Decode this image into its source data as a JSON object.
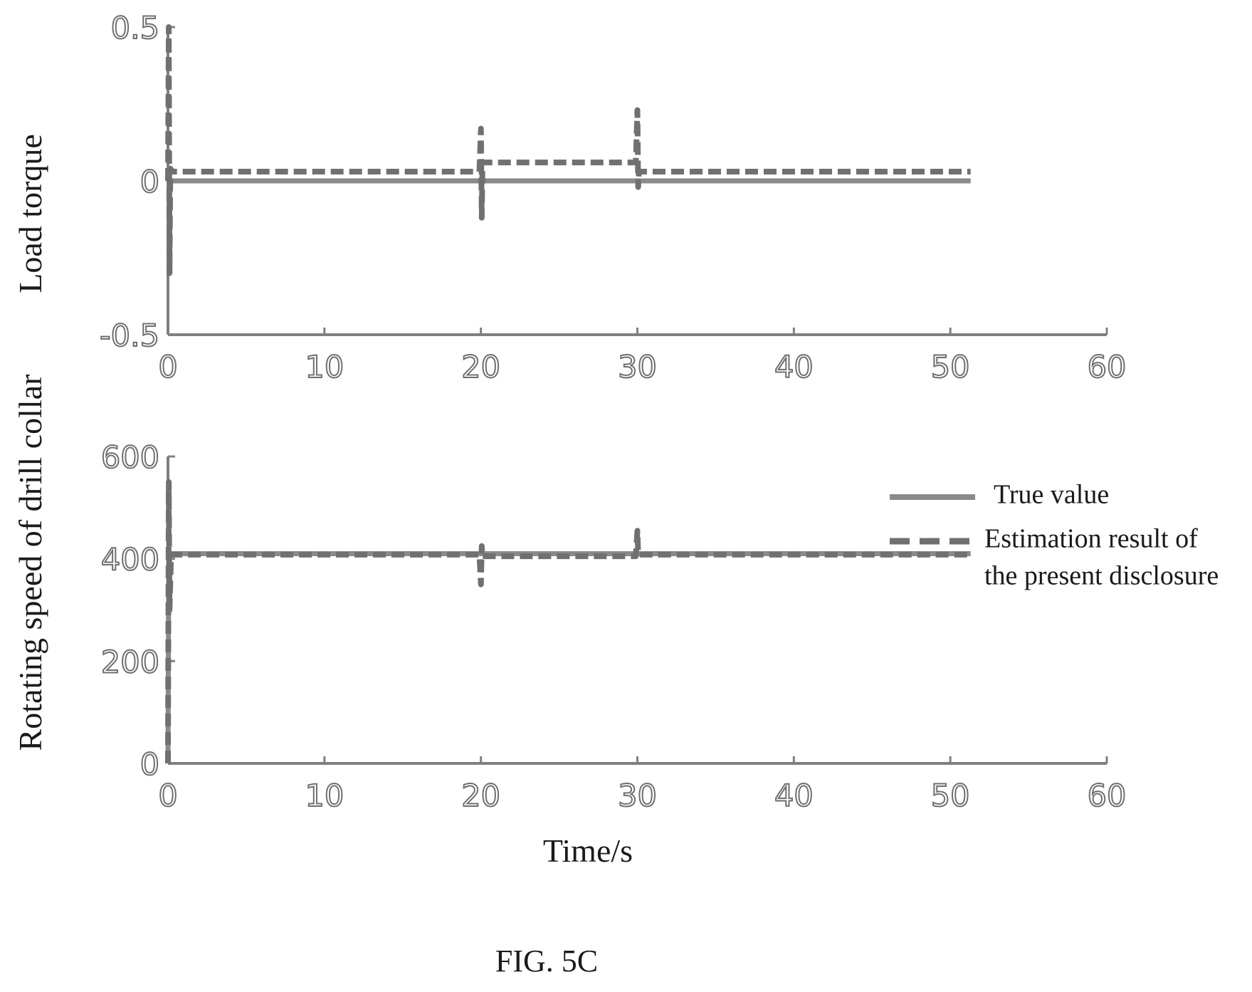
{
  "chart_data": [
    {
      "type": "line",
      "ylabel": "Load torque",
      "xticks": [
        "0",
        "10",
        "20",
        "30",
        "40",
        "50",
        "60"
      ],
      "yticks": [
        "-0.5",
        "0",
        "0.5"
      ],
      "xlim": [
        0,
        60
      ],
      "ylim": [
        -0.5,
        0.5
      ],
      "series": [
        {
          "name": "True value",
          "style": "solid",
          "color": "#8a8a8a",
          "x": [
            0,
            0.1,
            20,
            30,
            51.3
          ],
          "y": [
            0,
            0,
            0,
            0,
            0
          ]
        },
        {
          "name": "Estimation result of the present disclosure",
          "style": "dashed",
          "color": "#707070",
          "x": [
            0,
            0.05,
            0.1,
            0.15,
            0.3,
            5,
            10,
            15,
            19.9,
            20,
            20.05,
            20.1,
            20.3,
            25,
            29.9,
            30,
            30.05,
            30.1,
            30.3,
            35,
            40,
            45,
            51.3
          ],
          "y": [
            0,
            0.5,
            -0.3,
            0.04,
            0.03,
            0.03,
            0.03,
            0.03,
            0.03,
            0.17,
            -0.12,
            0.06,
            0.06,
            0.06,
            0.06,
            0.23,
            -0.02,
            0.03,
            0.03,
            0.03,
            0.03,
            0.03,
            0.03
          ]
        }
      ]
    },
    {
      "type": "line",
      "xlabel": "Time/s",
      "ylabel": "Rotating speed of drill collar",
      "xticks": [
        "0",
        "10",
        "20",
        "30",
        "40",
        "50",
        "60"
      ],
      "yticks": [
        "0",
        "200",
        "400",
        "600"
      ],
      "xlim": [
        0,
        60
      ],
      "ylim": [
        0,
        600
      ],
      "series": [
        {
          "name": "True value",
          "style": "solid",
          "color": "#8a8a8a",
          "x": [
            0,
            0.05,
            0.15,
            20,
            30,
            51.3
          ],
          "y": [
            0,
            410,
            410,
            410,
            410,
            410
          ]
        },
        {
          "name": "Estimation result of the present disclosure",
          "style": "dashed",
          "color": "#707070",
          "x": [
            0,
            0.05,
            0.1,
            0.2,
            5,
            10,
            19.9,
            20,
            20.05,
            20.1,
            25,
            29.9,
            30,
            30.05,
            30.1,
            35,
            40,
            45,
            51.3
          ],
          "y": [
            0,
            550,
            300,
            408,
            408,
            408,
            408,
            350,
            425,
            405,
            405,
            405,
            455,
            410,
            408,
            408,
            408,
            408,
            408
          ]
        }
      ],
      "legend": {
        "position": "right",
        "entries": [
          "True value",
          "Estimation result of",
          "the present disclosure"
        ]
      }
    }
  ],
  "caption": "FIG. 5C"
}
